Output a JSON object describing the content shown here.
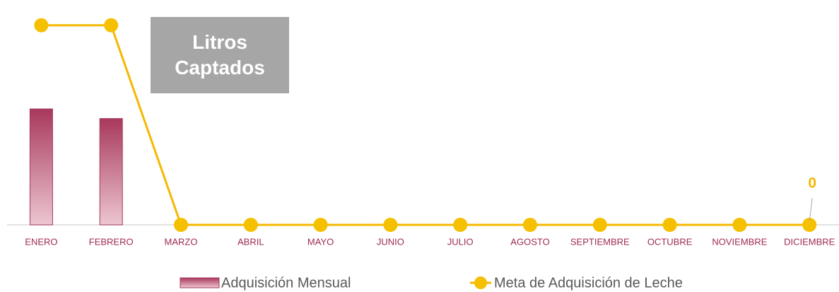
{
  "chart_data": {
    "type": "bar-line",
    "title": "Litros Captados",
    "categories": [
      "ENERO",
      "FEBRERO",
      "MARZO",
      "ABRIL",
      "MAYO",
      "JUNIO",
      "JULIO",
      "AGOSTO",
      "SEPTIEMBRE",
      "OCTUBRE",
      "NOVIEMBRE",
      "DICIEMBRE"
    ],
    "ylim": [
      0,
      300
    ],
    "series": [
      {
        "name": "Adquisición Mensual",
        "type": "bar",
        "color": "#a8385c",
        "values": [
          169,
          155,
          null,
          null,
          null,
          null,
          null,
          null,
          null,
          null,
          null,
          null
        ]
      },
      {
        "name": "Meta de Adquisición de Leche",
        "type": "line",
        "color": "#f5b800",
        "values": [
          291,
          291,
          0,
          0,
          0,
          0,
          0,
          0,
          0,
          0,
          0,
          0
        ],
        "label_indices": [
          11
        ]
      }
    ]
  }
}
